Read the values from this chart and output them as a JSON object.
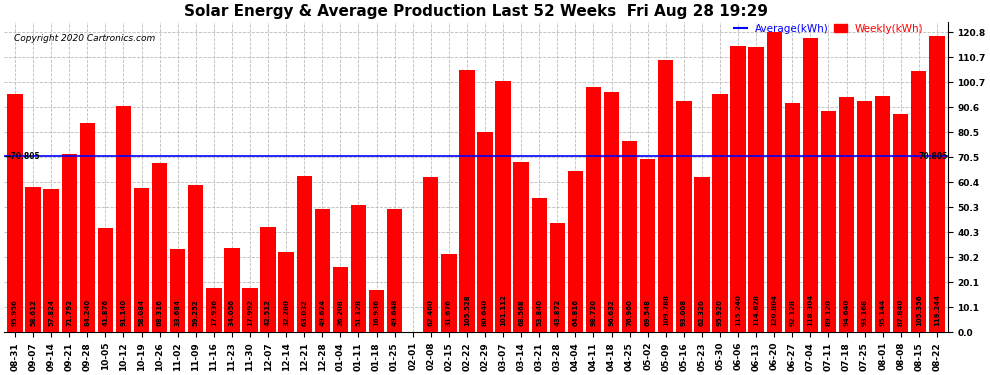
{
  "title": "Solar Energy & Average Production Last 52 Weeks  Fri Aug 28 19:29",
  "copyright": "Copyright 2020 Cartronics.com",
  "average_label": "Average(kWh)",
  "weekly_label": "Weekly(kWh)",
  "average_value": 70.805,
  "ylim": [
    0,
    125
  ],
  "yticks": [
    0.0,
    10.1,
    20.1,
    30.2,
    40.3,
    50.3,
    60.4,
    70.5,
    80.5,
    90.6,
    100.7,
    110.7,
    120.8
  ],
  "bar_color": "#ff0000",
  "average_line_color": "#0000ff",
  "background_color": "#ffffff",
  "grid_color": "#bbbbbb",
  "categories": [
    "08-31",
    "09-07",
    "09-14",
    "09-21",
    "09-28",
    "10-05",
    "10-12",
    "10-19",
    "10-26",
    "11-02",
    "11-09",
    "11-16",
    "11-23",
    "11-30",
    "12-07",
    "12-14",
    "12-21",
    "12-28",
    "01-04",
    "01-11",
    "01-18",
    "01-25",
    "02-01",
    "02-08",
    "02-15",
    "02-22",
    "02-29",
    "03-07",
    "03-14",
    "03-21",
    "03-28",
    "04-04",
    "04-11",
    "04-18",
    "04-25",
    "05-02",
    "05-09",
    "05-16",
    "05-23",
    "05-30",
    "06-06",
    "06-13",
    "06-20",
    "06-27",
    "07-04",
    "07-11",
    "07-18",
    "07-25",
    "08-01",
    "08-08",
    "08-15",
    "08-22"
  ],
  "values": [
    95.956,
    58.612,
    57.824,
    71.792,
    84.24,
    41.876,
    91.14,
    58.084,
    68.316,
    33.684,
    59.252,
    17.936,
    34.056,
    17.992,
    42.512,
    32.28,
    63.032,
    49.624,
    26.208,
    51.128,
    16.936,
    49.648,
    0.096,
    62.46,
    31.676,
    105.528,
    80.64,
    101.112,
    68.568,
    53.84,
    43.872,
    64.816,
    98.72,
    96.632,
    76.96,
    69.548,
    109.788,
    93.008,
    62.32,
    95.92,
    115.24,
    114.828,
    120.804,
    92.128,
    118.304,
    89.12,
    94.64,
    93.168,
    95.144,
    87.84,
    105.356,
    119.244
  ],
  "title_fontsize": 11,
  "tick_fontsize": 6.5,
  "value_fontsize": 5.0,
  "copyright_fontsize": 6.5,
  "legend_fontsize": 7.5
}
